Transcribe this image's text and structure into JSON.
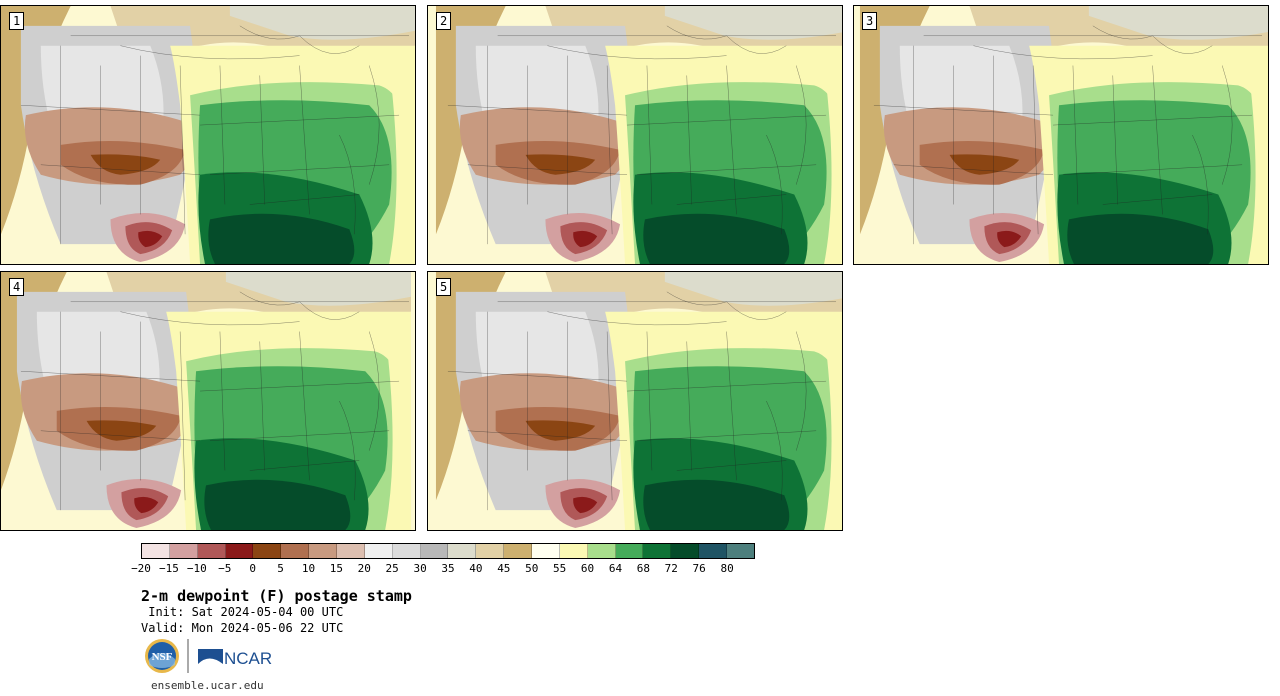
{
  "panels": [
    {
      "label": "1"
    },
    {
      "label": "2"
    },
    {
      "label": "3"
    },
    {
      "label": "4"
    },
    {
      "label": "5"
    }
  ],
  "colorbar": {
    "colors": [
      "#f3e3e3",
      "#d3a0a0",
      "#b05858",
      "#8b1a1a",
      "#8b4513",
      "#b07050",
      "#c89a80",
      "#ddbfb0",
      "#f0f0f0",
      "#dcdcdc",
      "#b8b8b8",
      "#dcdccc",
      "#e2d1a6",
      "#cdb06f",
      "#fffff0",
      "#fbf9b4",
      "#a8de8c",
      "#45ab5a",
      "#0e7336",
      "#054c2a",
      "#1f5464",
      "#4d7f7d"
    ],
    "tick_labels": [
      "−20",
      "−15",
      "−10",
      "−5",
      "0",
      "5",
      "10",
      "15",
      "20",
      "25",
      "30",
      "35",
      "40",
      "45",
      "50",
      "55",
      "60",
      "64",
      "68",
      "72",
      "76",
      "80"
    ]
  },
  "title": "2-m dewpoint (F) postage stamp",
  "init": " Init: Sat 2024-05-04 00 UTC",
  "valid": "Valid: Mon 2024-05-06 22 UTC",
  "logos": {
    "nsf": "NSF",
    "ncar": "NCAR"
  },
  "footer": "ensemble.ucar.edu"
}
